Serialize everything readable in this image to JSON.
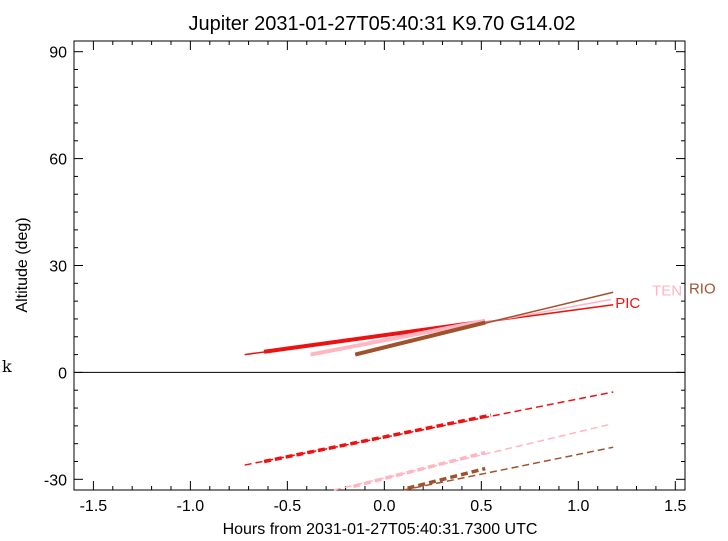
{
  "chart_data": {
    "type": "line",
    "title": "Jupiter 2031-01-27T05:40:31  K9.70  G14.02",
    "xlabel": "Hours from 2031-01-27T05:40:31.7300 UTC",
    "ylabel": "Altitude (deg)",
    "side_label": "k",
    "xlim": [
      -1.6,
      1.55
    ],
    "ylim": [
      -33,
      93
    ],
    "xticks": [
      -1.5,
      -1.0,
      -0.5,
      0.0,
      0.5,
      1.0,
      1.5
    ],
    "xtick_labels": [
      "-1.5",
      "-1.0",
      "-0.5",
      "0.0",
      "0.5",
      "1.0",
      "1.5"
    ],
    "yticks": [
      -30,
      0,
      30,
      60,
      90
    ],
    "ytick_labels": [
      "-30",
      "0",
      "30",
      "60",
      "90"
    ],
    "zero_line": 0,
    "grid": false,
    "series": [
      {
        "name": "PIC",
        "color": "#ee1111",
        "altitude": [
          [
            -0.72,
            5.0
          ],
          [
            1.18,
            19.0
          ]
        ],
        "altitude_bold": [
          [
            -0.62,
            5.8
          ],
          [
            0.5,
            14.2
          ]
        ],
        "depression": [
          [
            -0.72,
            -26.0
          ],
          [
            1.18,
            -5.5
          ]
        ],
        "depression_bold": [
          [
            -0.62,
            -25.0
          ],
          [
            0.55,
            -12.0
          ]
        ],
        "label_at": [
          1.18,
          19.5
        ]
      },
      {
        "name": "TEN",
        "color": "#ffb6c1",
        "altitude": [
          [
            -0.38,
            5.0
          ],
          [
            1.17,
            20.5
          ]
        ],
        "altitude_bold": [
          [
            -0.38,
            5.0
          ],
          [
            0.52,
            14.5
          ]
        ],
        "depression": [
          [
            -0.26,
            -33.0
          ],
          [
            1.17,
            -14.5
          ]
        ],
        "depression_bold": [
          [
            -0.16,
            -32.0
          ],
          [
            0.52,
            -22.5
          ]
        ],
        "label_at": [
          1.37,
          23.0
        ]
      },
      {
        "name": "RIO",
        "color": "#a0522d",
        "altitude": [
          [
            -0.15,
            5.0
          ],
          [
            1.18,
            22.5
          ]
        ],
        "altitude_bold": [
          [
            -0.15,
            5.0
          ],
          [
            0.52,
            14.0
          ]
        ],
        "depression": [
          [
            0.1,
            -33.0
          ],
          [
            1.18,
            -21.0
          ]
        ],
        "depression_bold": [
          [
            0.12,
            -32.5
          ],
          [
            0.52,
            -27.0
          ]
        ],
        "label_at": [
          1.56,
          23.5
        ]
      }
    ]
  }
}
